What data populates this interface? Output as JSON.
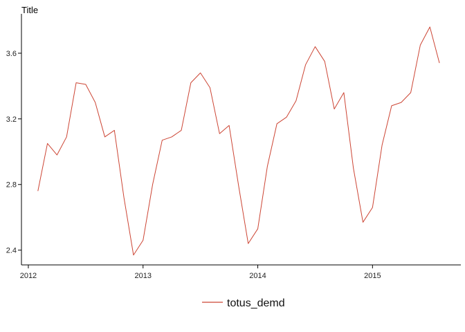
{
  "chart_data": {
    "type": "line",
    "title": "Title",
    "xlabel": "",
    "ylabel": "",
    "x_ticks": [
      {
        "label": "2012",
        "value": 2012.0
      },
      {
        "label": "2013",
        "value": 2013.0
      },
      {
        "label": "2014",
        "value": 2014.0
      },
      {
        "label": "2015",
        "value": 2015.0
      }
    ],
    "y_ticks": [
      {
        "label": "2.4",
        "value": 2.4
      },
      {
        "label": "2.8",
        "value": 2.8
      },
      {
        "label": "3.2",
        "value": 3.2
      },
      {
        "label": "3.6",
        "value": 3.6
      }
    ],
    "xlim": [
      2011.94,
      2015.77
    ],
    "ylim": [
      2.31,
      3.84
    ],
    "grid": false,
    "legend_position": "bottom",
    "series": [
      {
        "name": "totus_demd",
        "color": "#cc4433",
        "x": [
          "2012-02",
          "2012-03",
          "2012-04",
          "2012-05",
          "2012-06",
          "2012-07",
          "2012-08",
          "2012-09",
          "2012-10",
          "2012-11",
          "2012-12",
          "2013-01",
          "2013-02",
          "2013-03",
          "2013-04",
          "2013-05",
          "2013-06",
          "2013-07",
          "2013-08",
          "2013-09",
          "2013-10",
          "2013-11",
          "2013-12",
          "2014-01",
          "2014-02",
          "2014-03",
          "2014-04",
          "2014-05",
          "2014-06",
          "2014-07",
          "2014-08",
          "2014-09",
          "2014-10",
          "2014-11",
          "2014-12",
          "2015-01",
          "2015-02",
          "2015-03",
          "2015-04",
          "2015-05",
          "2015-06",
          "2015-07",
          "2015-08"
        ],
        "values": [
          2.76,
          3.05,
          2.98,
          3.09,
          3.42,
          3.41,
          3.3,
          3.09,
          3.13,
          2.72,
          2.37,
          2.46,
          2.8,
          3.07,
          3.09,
          3.13,
          3.42,
          3.48,
          3.39,
          3.11,
          3.16,
          2.79,
          2.44,
          2.53,
          2.91,
          3.17,
          3.21,
          3.31,
          3.53,
          3.64,
          3.55,
          3.26,
          3.36,
          2.9,
          2.57,
          2.66,
          3.04,
          3.28,
          3.3,
          3.36,
          3.65,
          3.76,
          3.54
        ]
      }
    ]
  }
}
